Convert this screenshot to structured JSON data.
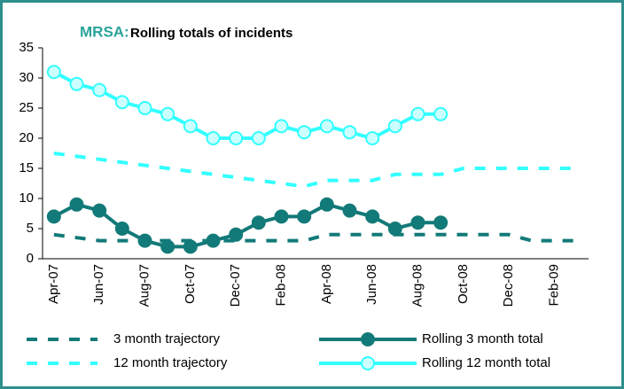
{
  "chart_data": {
    "type": "line",
    "title": "MRSA:",
    "subtitle": "Rolling totals of incidents",
    "categories": [
      "Apr-07",
      null,
      "Jun-07",
      null,
      "Aug-07",
      null,
      "Oct-07",
      null,
      "Dec-07",
      null,
      "Feb-08",
      null,
      "Apr-08",
      null,
      "Jun-08",
      null,
      "Aug-08",
      null,
      "Oct-08",
      null,
      "Dec-08",
      null,
      "Feb-09",
      null
    ],
    "ylim": [
      0,
      35
    ],
    "yticks": [
      0,
      5,
      10,
      15,
      20,
      25,
      30,
      35
    ],
    "grid": false,
    "legend": "bottom",
    "series": [
      {
        "name": "3 month trajectory",
        "color": "#127a78",
        "style": "dashed",
        "values": [
          4,
          3.5,
          3,
          3,
          3,
          3,
          3,
          3,
          3,
          3,
          3,
          3,
          4,
          4,
          4,
          4,
          4,
          4,
          4,
          4,
          4,
          3,
          3,
          3
        ]
      },
      {
        "name": "Rolling 3 month total",
        "color": "#127a78",
        "style": "markers",
        "values": [
          7,
          9,
          8,
          5,
          3,
          2,
          2,
          3,
          4,
          6,
          7,
          7,
          9,
          8,
          7,
          5,
          6,
          6,
          null,
          null,
          null,
          null,
          null,
          null
        ]
      },
      {
        "name": "12 month trajectory",
        "color": "#33ffff",
        "style": "dashed",
        "values": [
          17.5,
          17,
          16.5,
          16,
          15.5,
          15,
          14.5,
          14,
          13.5,
          13,
          12.5,
          12,
          13,
          13,
          13,
          14,
          14,
          14,
          15,
          15,
          15,
          15,
          15,
          15
        ]
      },
      {
        "name": "Rolling 12 month total",
        "color": "#33ffff",
        "style": "markers",
        "values": [
          31,
          29,
          28,
          26,
          25,
          24,
          22,
          20,
          20,
          20,
          22,
          21,
          22,
          21,
          20,
          22,
          24,
          24,
          null,
          null,
          null,
          null,
          null,
          null
        ]
      }
    ]
  }
}
